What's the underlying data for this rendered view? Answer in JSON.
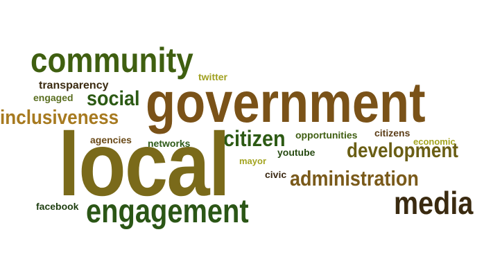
{
  "words": {
    "community": {
      "text": "community",
      "color": "#3f5f10"
    },
    "twitter": {
      "text": "twitter",
      "color": "#a0a020"
    },
    "transparency": {
      "text": "transparency",
      "color": "#3a2a10"
    },
    "engaged": {
      "text": "engaged",
      "color": "#5a6e20"
    },
    "social": {
      "text": "social",
      "color": "#2c5a14"
    },
    "government": {
      "text": "government",
      "color": "#7a5218"
    },
    "inclusiveness": {
      "text": "inclusiveness",
      "color": "#a77a20"
    },
    "citizen": {
      "text": "citizen",
      "color": "#2d5a14"
    },
    "opportunities": {
      "text": "opportunities",
      "color": "#3f5e12"
    },
    "citizens": {
      "text": "citizens",
      "color": "#5c3e18"
    },
    "agencies": {
      "text": "agencies",
      "color": "#6a4a18"
    },
    "networks": {
      "text": "networks",
      "color": "#2e5a18"
    },
    "economic": {
      "text": "economic",
      "color": "#a4a420"
    },
    "development": {
      "text": "development",
      "color": "#6a5e14"
    },
    "youtube": {
      "text": "youtube",
      "color": "#274a12"
    },
    "local": {
      "text": "local",
      "color": "#7a6a1a"
    },
    "mayor": {
      "text": "mayor",
      "color": "#a3a420"
    },
    "civic": {
      "text": "civic",
      "color": "#3a2812"
    },
    "administration": {
      "text": "administration",
      "color": "#7a5a1a"
    },
    "media": {
      "text": "media",
      "color": "#3a2a10"
    },
    "facebook": {
      "text": "facebook",
      "color": "#1e3e10"
    },
    "engagement": {
      "text": "engagement",
      "color": "#2b5616"
    }
  }
}
